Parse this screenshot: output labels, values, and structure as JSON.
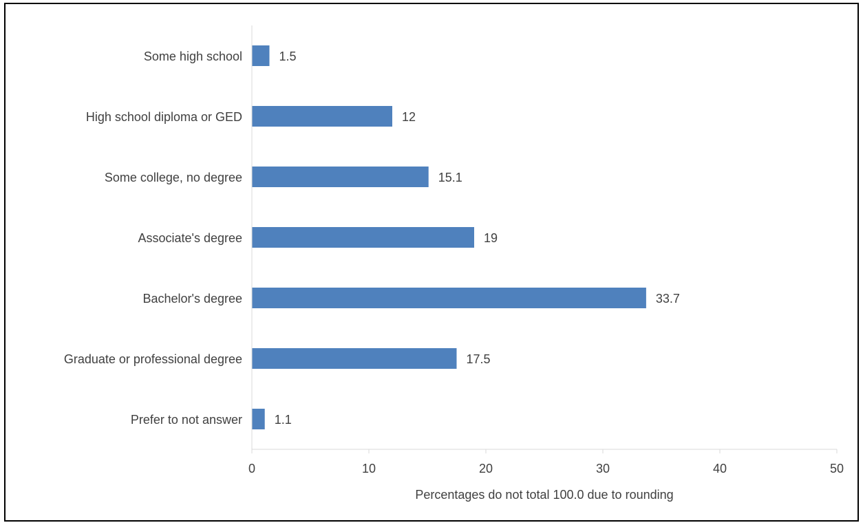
{
  "chart_data": {
    "type": "bar",
    "orientation": "horizontal",
    "categories": [
      "Some high school",
      "High school diploma or GED",
      "Some college, no degree",
      "Associate's degree",
      "Bachelor's degree",
      "Graduate or professional degree",
      "Prefer to not answer"
    ],
    "values": [
      1.5,
      12,
      15.1,
      19,
      33.7,
      17.5,
      1.1
    ],
    "value_labels": [
      "1.5",
      "12",
      "15.1",
      "19",
      "33.7",
      "17.5",
      "1.1"
    ],
    "xticks": [
      "0",
      "10",
      "20",
      "30",
      "40",
      "50"
    ],
    "xlim": [
      0,
      50
    ],
    "xlabel": "Percentages do not total 100.0 due to rounding",
    "title": "",
    "grid": false,
    "colors": {
      "bar": "#4f81bd",
      "axis": "#d9d9d9",
      "text": "#404040"
    }
  }
}
